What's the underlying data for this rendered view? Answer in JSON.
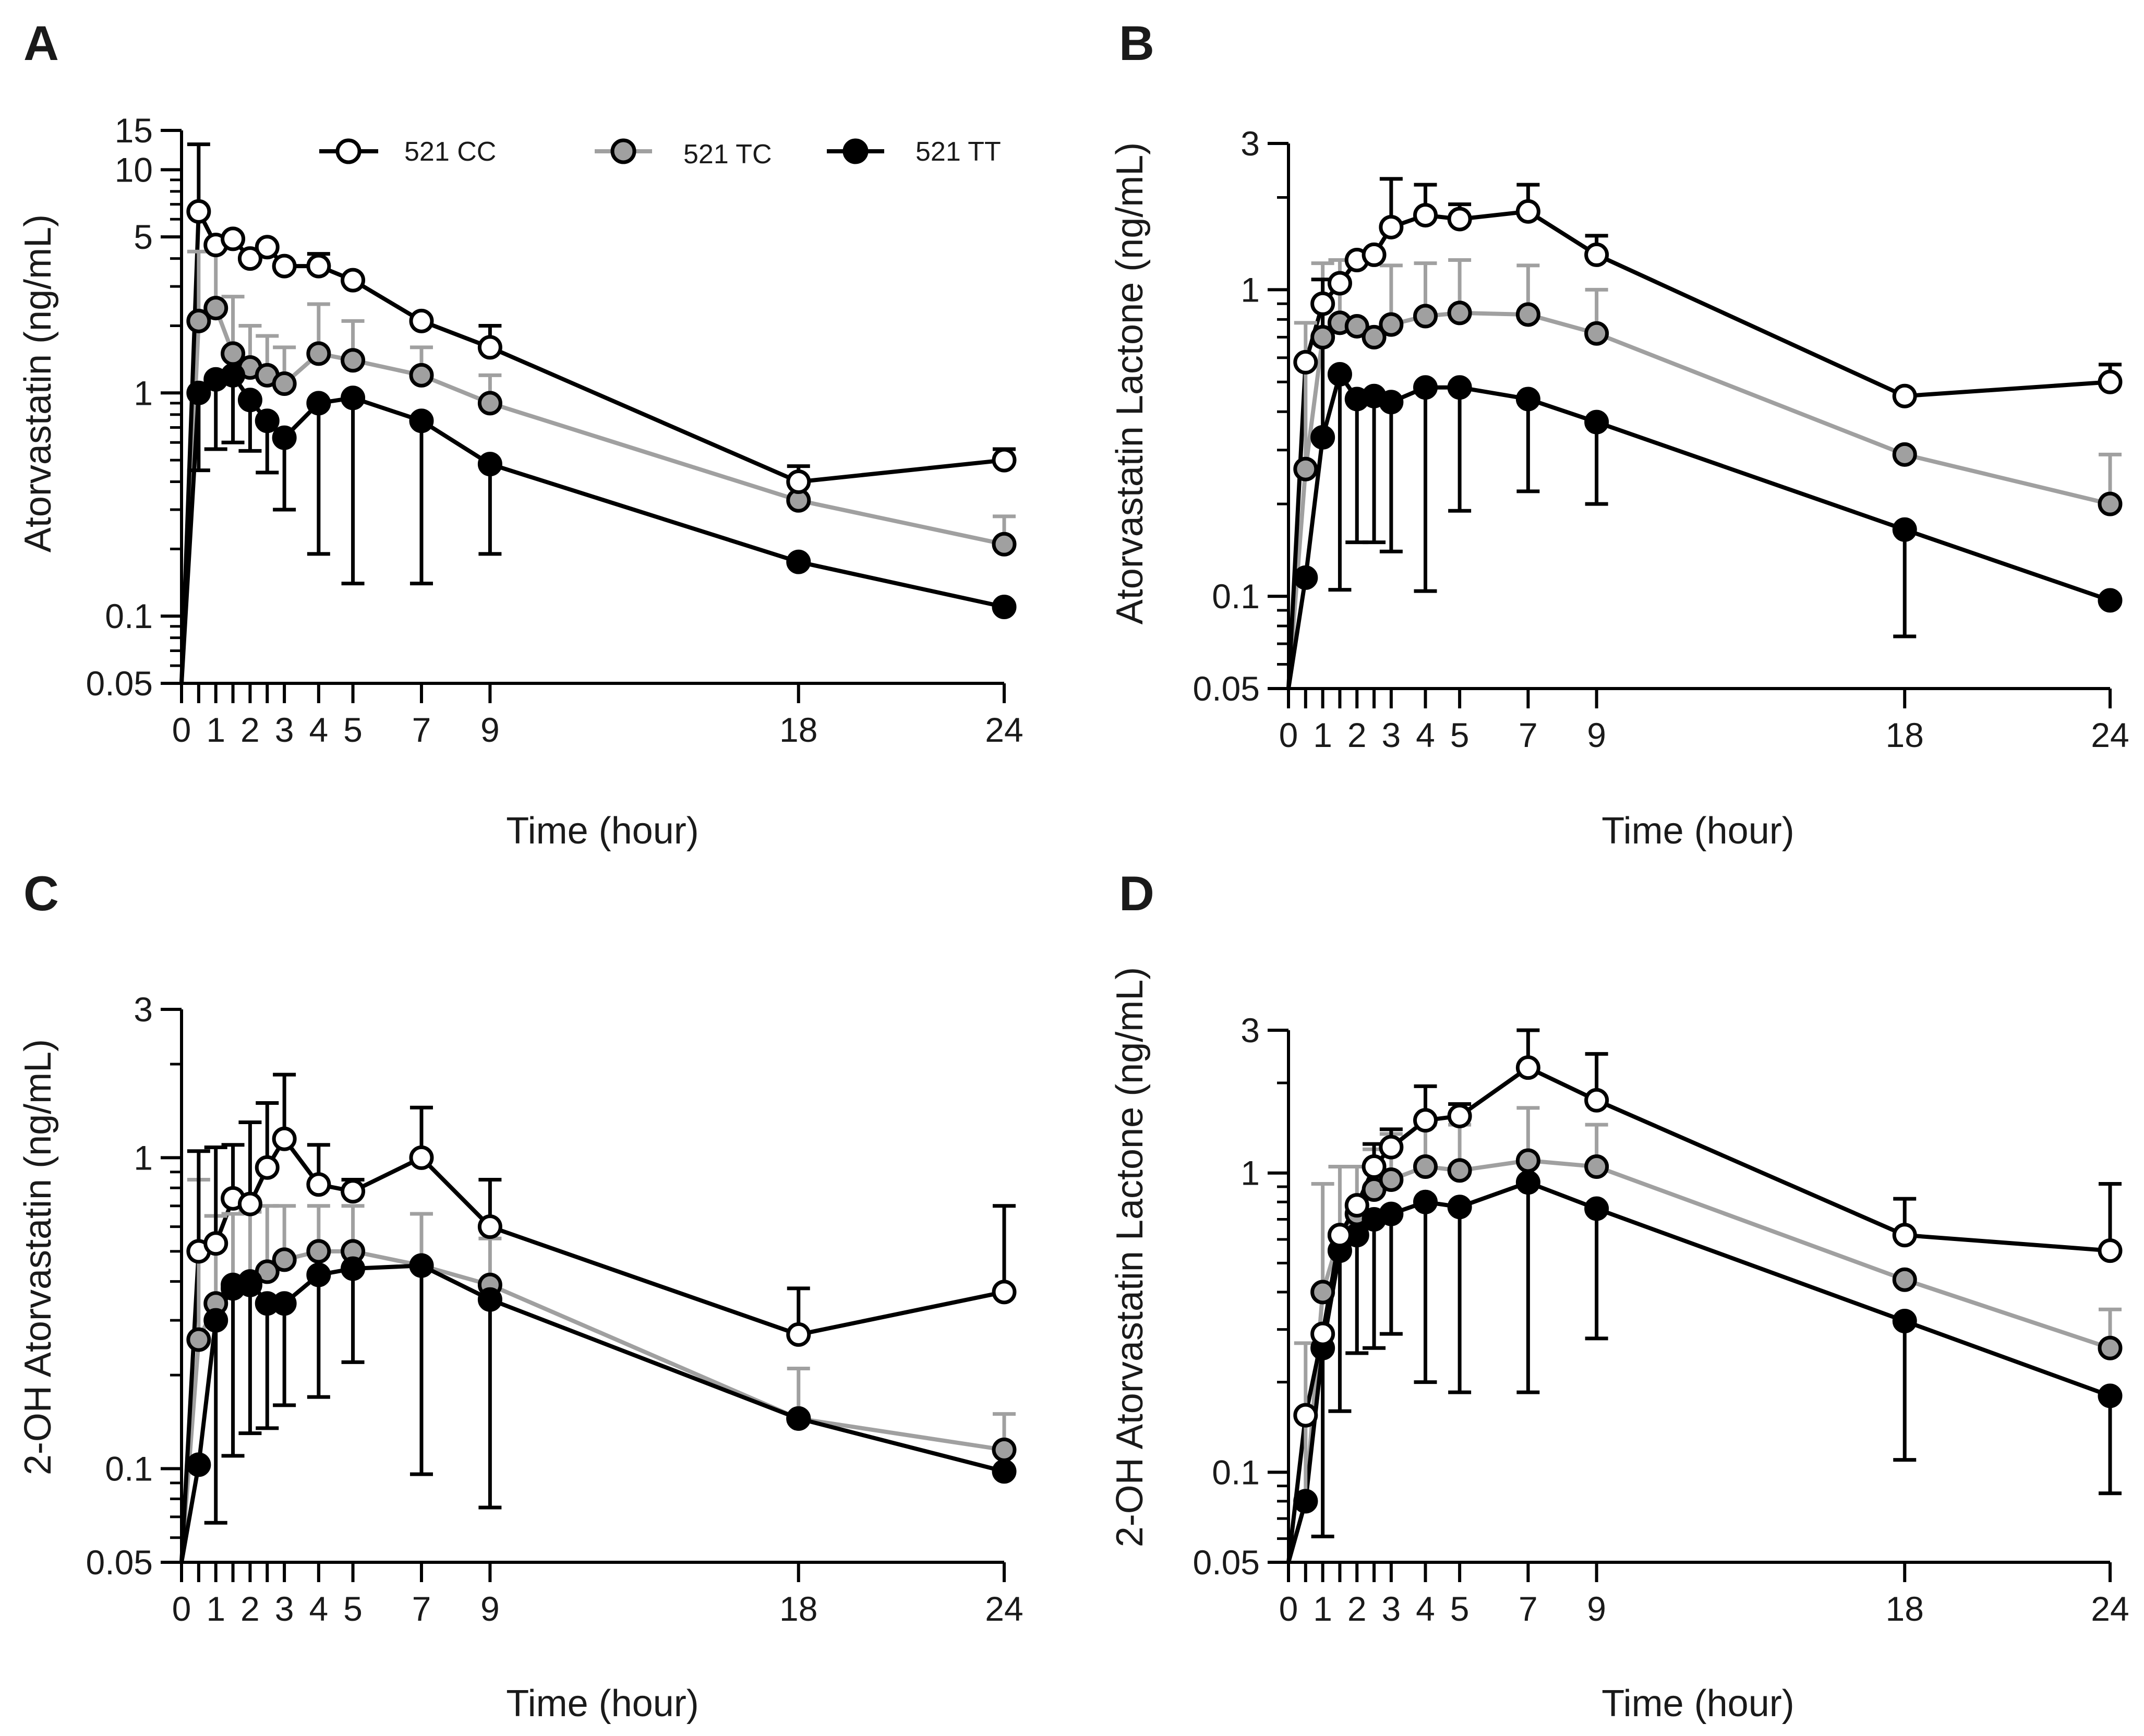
{
  "figure": {
    "legend": [
      {
        "key": "cc",
        "label": "521 CC",
        "fill": "#ffffff",
        "stroke": "#000000",
        "line": "#000000"
      },
      {
        "key": "tc",
        "label": "521 TC",
        "fill": "#a0a0a0",
        "stroke": "#000000",
        "line": "#a0a0a0"
      },
      {
        "key": "tt",
        "label": "521 TT",
        "fill": "#000000",
        "stroke": "#000000",
        "line": "#000000"
      }
    ]
  },
  "chart_data": [
    {
      "panel": "A",
      "type": "line",
      "xlabel": "Time (hour)",
      "ylabel": "Atorvastatin (ng/mL)",
      "yscale": "log",
      "ylim": [
        0.05,
        15
      ],
      "xlim": [
        0,
        24
      ],
      "xticks": [
        0,
        1,
        2,
        3,
        4,
        5,
        7,
        9,
        18,
        24
      ],
      "yticks": [
        {
          "value": 0.05,
          "label": "0.05"
        },
        {
          "value": 0.1,
          "label": "0.1"
        },
        {
          "value": 1,
          "label": "1"
        },
        {
          "value": 5,
          "label": "5"
        },
        {
          "value": 10,
          "label": "10"
        },
        {
          "value": 15,
          "label": "15"
        }
      ],
      "x": [
        0,
        0.5,
        1,
        1.5,
        2,
        2.5,
        3,
        4,
        5,
        7,
        9,
        18,
        24
      ],
      "series": [
        {
          "key": "cc",
          "name": "521 CC",
          "values": [
            0.05,
            6.5,
            4.6,
            4.9,
            4.0,
            4.5,
            3.7,
            3.7,
            3.2,
            2.1,
            1.6,
            0.4,
            0.5
          ],
          "err_upper": [
            null,
            13,
            null,
            null,
            null,
            null,
            null,
            4.2,
            null,
            null,
            2.0,
            0.47,
            0.56
          ]
        },
        {
          "key": "tc",
          "name": "521 TC",
          "values": [
            0.05,
            2.1,
            2.4,
            1.5,
            1.3,
            1.2,
            1.1,
            1.5,
            1.4,
            1.2,
            0.9,
            0.33,
            0.21
          ],
          "err_upper": [
            null,
            4.3,
            4.4,
            2.7,
            2.0,
            1.8,
            1.6,
            2.5,
            2.1,
            1.6,
            1.2,
            null,
            0.28
          ]
        },
        {
          "key": "tt",
          "name": "521 TT",
          "values": [
            0.05,
            1.0,
            1.15,
            1.2,
            0.93,
            0.75,
            0.63,
            0.9,
            0.95,
            0.75,
            0.48,
            0.175,
            0.11
          ],
          "err_lower": [
            null,
            0.45,
            0.56,
            0.6,
            0.55,
            0.44,
            0.3,
            0.19,
            0.14,
            0.14,
            0.19,
            null,
            null
          ]
        }
      ]
    },
    {
      "panel": "B",
      "type": "line",
      "xlabel": "Time (hour)",
      "ylabel": "Atorvastatin Lactone (ng/mL)",
      "yscale": "log",
      "ylim": [
        0.05,
        3
      ],
      "xlim": [
        0,
        24
      ],
      "xticks": [
        0,
        1,
        2,
        3,
        4,
        5,
        7,
        9,
        18,
        24
      ],
      "yticks": [
        {
          "value": 0.05,
          "label": "0.05"
        },
        {
          "value": 0.1,
          "label": "0.1"
        },
        {
          "value": 1,
          "label": "1"
        },
        {
          "value": 3,
          "label": "3"
        }
      ],
      "x": [
        0,
        0.5,
        1,
        1.5,
        2,
        2.5,
        3,
        4,
        5,
        7,
        9,
        18,
        24
      ],
      "series": [
        {
          "key": "cc",
          "name": "521 CC",
          "values": [
            0.05,
            0.58,
            0.9,
            1.05,
            1.25,
            1.3,
            1.6,
            1.75,
            1.7,
            1.8,
            1.3,
            0.45,
            0.5
          ],
          "err_upper": [
            null,
            null,
            null,
            null,
            null,
            null,
            2.3,
            2.2,
            1.9,
            2.2,
            1.5,
            null,
            0.57
          ]
        },
        {
          "key": "tc",
          "name": "521 TC",
          "values": [
            0.05,
            0.26,
            0.7,
            0.78,
            0.76,
            0.7,
            0.77,
            0.82,
            0.84,
            0.83,
            0.72,
            0.29,
            0.2
          ],
          "err_upper": [
            null,
            0.78,
            1.22,
            1.25,
            null,
            null,
            1.2,
            1.22,
            1.25,
            1.2,
            1.0,
            null,
            0.29
          ]
        },
        {
          "key": "tt",
          "name": "521 TT",
          "values": [
            0.05,
            0.115,
            0.33,
            0.53,
            0.44,
            0.45,
            0.43,
            0.48,
            0.48,
            0.44,
            0.37,
            0.165,
            0.097
          ],
          "err_lower": [
            null,
            null,
            null,
            0.105,
            0.15,
            0.15,
            0.14,
            0.104,
            0.19,
            0.22,
            0.2,
            0.074,
            null
          ],
          "err_upper": [
            null,
            null,
            1.08,
            null,
            null,
            null,
            null,
            null,
            null,
            null,
            null,
            null,
            null
          ]
        }
      ]
    },
    {
      "panel": "C",
      "type": "line",
      "xlabel": "Time (hour)",
      "ylabel": "2-OH Atorvastatin (ng/mL)",
      "yscale": "log",
      "ylim": [
        0.05,
        3
      ],
      "xlim": [
        0,
        24
      ],
      "xticks": [
        0,
        1,
        2,
        3,
        4,
        5,
        7,
        9,
        18,
        24
      ],
      "yticks": [
        {
          "value": 0.05,
          "label": "0.05"
        },
        {
          "value": 0.1,
          "label": "0.1"
        },
        {
          "value": 1,
          "label": "1"
        },
        {
          "value": 3,
          "label": "3"
        }
      ],
      "x": [
        0,
        0.5,
        1,
        1.5,
        2,
        2.5,
        3,
        4,
        5,
        7,
        9,
        18,
        24
      ],
      "series": [
        {
          "key": "cc",
          "name": "521 CC",
          "values": [
            0.05,
            0.5,
            0.53,
            0.74,
            0.71,
            0.93,
            1.15,
            0.82,
            0.78,
            1.0,
            0.6,
            0.27,
            0.37
          ],
          "err_upper": [
            null,
            1.05,
            1.08,
            1.1,
            1.3,
            1.5,
            1.85,
            1.1,
            0.85,
            1.45,
            0.85,
            0.38,
            0.7
          ]
        },
        {
          "key": "tc",
          "name": "521 TC",
          "values": [
            0.05,
            0.26,
            0.34,
            0.38,
            0.39,
            0.43,
            0.47,
            0.5,
            0.5,
            0.45,
            0.39,
            0.145,
            0.115
          ],
          "err_upper": [
            null,
            0.85,
            0.65,
            0.66,
            0.67,
            0.7,
            0.7,
            0.7,
            0.7,
            0.66,
            0.55,
            0.21,
            0.15
          ]
        },
        {
          "key": "tt",
          "name": "521 TT",
          "values": [
            0.05,
            0.103,
            0.3,
            0.39,
            0.4,
            0.34,
            0.34,
            0.42,
            0.44,
            0.45,
            0.35,
            0.145,
            0.098
          ],
          "err_lower": [
            null,
            null,
            0.067,
            0.11,
            0.13,
            0.135,
            0.16,
            0.17,
            0.22,
            0.096,
            0.075,
            null,
            null
          ]
        }
      ]
    },
    {
      "panel": "D",
      "type": "line",
      "xlabel": "Time (hour)",
      "ylabel": "2-OH Atorvastatin Lactone (ng/mL)",
      "yscale": "log",
      "ylim": [
        0.05,
        3
      ],
      "xlim": [
        0,
        24
      ],
      "xticks": [
        0,
        1,
        2,
        3,
        4,
        5,
        7,
        9,
        18,
        24
      ],
      "yticks": [
        {
          "value": 0.05,
          "label": "0.05"
        },
        {
          "value": 0.1,
          "label": "0.1"
        },
        {
          "value": 1,
          "label": "1"
        },
        {
          "value": 3,
          "label": "3"
        }
      ],
      "x": [
        0,
        0.5,
        1,
        1.5,
        2,
        2.5,
        3,
        4,
        5,
        7,
        9,
        18,
        24
      ],
      "series": [
        {
          "key": "cc",
          "name": "521 CC",
          "values": [
            0.05,
            0.155,
            0.29,
            0.62,
            0.78,
            1.05,
            1.22,
            1.5,
            1.55,
            2.25,
            1.75,
            0.62,
            0.55
          ],
          "err_upper": [
            null,
            null,
            null,
            null,
            null,
            1.25,
            1.4,
            1.95,
            1.7,
            3.0,
            2.5,
            0.82,
            0.92
          ]
        },
        {
          "key": "tc",
          "name": "521 TC",
          "values": [
            0.05,
            0.08,
            0.4,
            0.62,
            0.73,
            0.88,
            0.95,
            1.05,
            1.02,
            1.1,
            1.05,
            0.44,
            0.26
          ],
          "err_upper": [
            null,
            0.27,
            0.92,
            1.05,
            1.05,
            1.2,
            1.35,
            1.45,
            1.45,
            1.65,
            1.45,
            null,
            0.35
          ]
        },
        {
          "key": "tt",
          "name": "521 TT",
          "values": [
            0.05,
            0.08,
            0.26,
            0.55,
            0.62,
            0.7,
            0.73,
            0.8,
            0.77,
            0.93,
            0.76,
            0.32,
            0.18
          ],
          "err_lower": [
            null,
            null,
            0.061,
            0.16,
            0.25,
            0.26,
            0.29,
            0.2,
            0.185,
            0.185,
            0.28,
            0.11,
            0.085
          ]
        }
      ]
    }
  ]
}
